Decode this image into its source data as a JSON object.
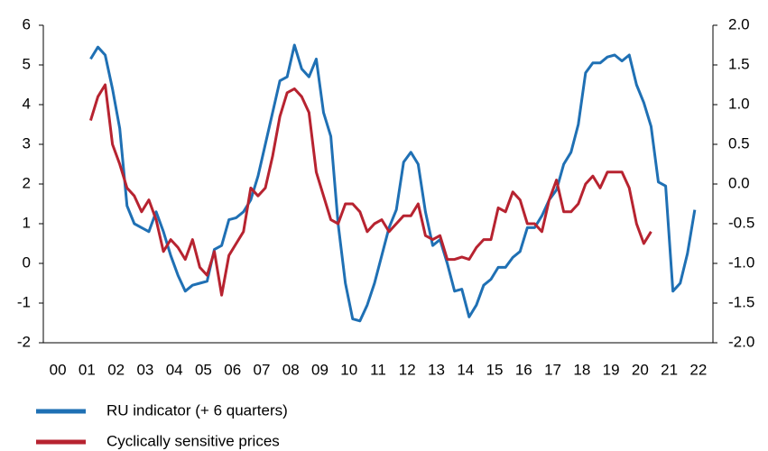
{
  "chart_data": {
    "type": "line",
    "x": [
      1.625,
      1.875,
      2.125,
      2.375,
      2.625,
      2.875,
      3.125,
      3.375,
      3.625,
      3.875,
      4.125,
      4.375,
      4.625,
      4.875,
      5.125,
      5.375,
      5.625,
      5.875,
      6.125,
      6.375,
      6.625,
      6.875,
      7.125,
      7.375,
      7.625,
      7.875,
      8.125,
      8.375,
      8.625,
      8.875,
      9.125,
      9.375,
      9.625,
      9.875,
      10.125,
      10.375,
      10.625,
      10.875,
      11.125,
      11.375,
      11.625,
      11.875,
      12.125,
      12.375,
      12.625,
      12.875,
      13.125,
      13.375,
      13.625,
      13.875,
      14.125,
      14.375,
      14.625,
      14.875,
      15.125,
      15.375,
      15.625,
      15.875,
      16.125,
      16.375,
      16.625,
      16.875,
      17.125,
      17.375,
      17.625,
      17.875,
      18.125,
      18.375,
      18.625,
      18.875,
      19.125,
      19.375,
      19.625,
      19.875,
      20.125,
      20.375,
      20.625,
      20.875,
      21.125,
      21.375,
      21.625,
      21.875,
      22.125,
      22.375
    ],
    "series": [
      {
        "name": "RU indicator (+ 6 quarters)",
        "color": "#1f70b4",
        "axis": "y",
        "values": [
          5.15,
          5.45,
          5.25,
          4.4,
          3.4,
          1.45,
          1.0,
          0.9,
          0.8,
          1.3,
          0.8,
          0.2,
          -0.3,
          -0.7,
          -0.55,
          -0.5,
          -0.45,
          0.35,
          0.45,
          1.1,
          1.15,
          1.3,
          1.6,
          2.2,
          3.0,
          3.8,
          4.6,
          4.7,
          5.5,
          4.9,
          4.7,
          5.15,
          3.8,
          3.2,
          1.0,
          -0.5,
          -1.4,
          -1.45,
          -1.05,
          -0.5,
          0.2,
          0.9,
          1.35,
          2.55,
          2.8,
          2.5,
          1.3,
          0.45,
          0.6,
          0.0,
          -0.7,
          -0.65,
          -1.35,
          -1.05,
          -0.55,
          -0.4,
          -0.1,
          -0.1,
          0.15,
          0.3,
          0.9,
          0.9,
          1.2,
          1.6,
          1.85,
          2.5,
          2.8,
          3.5,
          4.8,
          5.05,
          5.05,
          5.2,
          5.25,
          5.1,
          5.25,
          4.5,
          4.05,
          3.45,
          2.05,
          1.95,
          -0.7,
          -0.5,
          0.25,
          1.35
        ]
      },
      {
        "name": "Cyclically sensitive prices",
        "color": "#b72330",
        "axis": "y2",
        "values": [
          0.8,
          1.1,
          1.25,
          0.5,
          0.25,
          -0.05,
          -0.15,
          -0.35,
          -0.2,
          -0.45,
          -0.85,
          -0.7,
          -0.8,
          -0.95,
          -0.7,
          -1.05,
          -1.15,
          -0.85,
          -1.4,
          -0.9,
          -0.75,
          -0.6,
          -0.05,
          -0.15,
          -0.05,
          0.35,
          0.85,
          1.15,
          1.2,
          1.1,
          0.9,
          0.15,
          -0.15,
          -0.45,
          -0.5,
          -0.25,
          -0.25,
          -0.35,
          -0.6,
          -0.5,
          -0.45,
          -0.6,
          -0.5,
          -0.4,
          -0.4,
          -0.25,
          -0.65,
          -0.7,
          -0.65,
          -0.95,
          -0.95,
          -0.92,
          -0.95,
          -0.8,
          -0.7,
          -0.7,
          -0.3,
          -0.35,
          -0.1,
          -0.2,
          -0.5,
          -0.5,
          -0.6,
          -0.2,
          0.05,
          -0.35,
          -0.35,
          -0.25,
          0.0,
          0.1,
          -0.05,
          0.15,
          0.15,
          0.15,
          -0.05,
          -0.5,
          -0.75,
          -0.6,
          null,
          null,
          null,
          null,
          null,
          null
        ]
      }
    ],
    "xlim": [
      0,
      23
    ],
    "xticks": [
      {
        "value": 0.5,
        "label": "00"
      },
      {
        "value": 1.5,
        "label": "01"
      },
      {
        "value": 2.5,
        "label": "02"
      },
      {
        "value": 3.5,
        "label": "03"
      },
      {
        "value": 4.5,
        "label": "04"
      },
      {
        "value": 5.5,
        "label": "05"
      },
      {
        "value": 6.5,
        "label": "06"
      },
      {
        "value": 7.5,
        "label": "07"
      },
      {
        "value": 8.5,
        "label": "08"
      },
      {
        "value": 9.5,
        "label": "09"
      },
      {
        "value": 10.5,
        "label": "10"
      },
      {
        "value": 11.5,
        "label": "11"
      },
      {
        "value": 12.5,
        "label": "12"
      },
      {
        "value": 13.5,
        "label": "13"
      },
      {
        "value": 14.5,
        "label": "14"
      },
      {
        "value": 15.5,
        "label": "15"
      },
      {
        "value": 16.5,
        "label": "16"
      },
      {
        "value": 17.5,
        "label": "17"
      },
      {
        "value": 18.5,
        "label": "18"
      },
      {
        "value": 19.5,
        "label": "19"
      },
      {
        "value": 20.5,
        "label": "20"
      },
      {
        "value": 21.5,
        "label": "21"
      },
      {
        "value": 22.5,
        "label": "22"
      }
    ],
    "ylim": [
      -2,
      6
    ],
    "yticks": [
      -2,
      -1,
      0,
      1,
      2,
      3,
      4,
      5,
      6
    ],
    "y2lim": [
      -2,
      2
    ],
    "y2ticks": [
      {
        "value": -2,
        "label": "-2.0"
      },
      -1.5,
      {
        "value": -1,
        "label": "-1.0"
      },
      -0.5,
      {
        "value": 0,
        "label": "0.0"
      },
      0.5,
      {
        "value": 1,
        "label": "1.0"
      },
      1.5,
      {
        "value": 2,
        "label": "2.0"
      }
    ]
  }
}
